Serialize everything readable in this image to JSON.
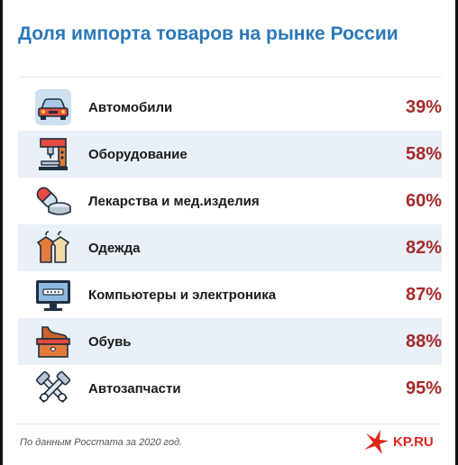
{
  "title": "Доля импорта товаров на рынке России",
  "source": "По данным Росстата за 2020 год.",
  "logo": "KP.RU",
  "colors": {
    "title": "#2a78b9",
    "value": "#a72a2a",
    "row_shade": "#e9f0f8",
    "logo": "#e0261b"
  },
  "rows": [
    {
      "label": "Автомобили",
      "value_text": "39%",
      "icon": "car-icon"
    },
    {
      "label": "Оборудование",
      "value_text": "58%",
      "icon": "machine-tool-icon"
    },
    {
      "label": "Лекарства и мед.изделия",
      "value_text": "60%",
      "icon": "pills-icon"
    },
    {
      "label": "Одежда",
      "value_text": "82%",
      "icon": "clothes-icon"
    },
    {
      "label": "Компьютеры и электроника",
      "value_text": "87%",
      "icon": "monitor-icon"
    },
    {
      "label": "Обувь",
      "value_text": "88%",
      "icon": "shoe-box-icon"
    },
    {
      "label": "Автозапчасти",
      "value_text": "95%",
      "icon": "pistons-icon"
    }
  ],
  "chart_data": {
    "type": "table",
    "title": "Доля импорта товаров на рынке России",
    "categories": [
      "Автомобили",
      "Оборудование",
      "Лекарства и мед.изделия",
      "Одежда",
      "Компьютеры и электроника",
      "Обувь",
      "Автозапчасти"
    ],
    "values": [
      39,
      58,
      60,
      82,
      87,
      88,
      95
    ],
    "unit": "%"
  }
}
